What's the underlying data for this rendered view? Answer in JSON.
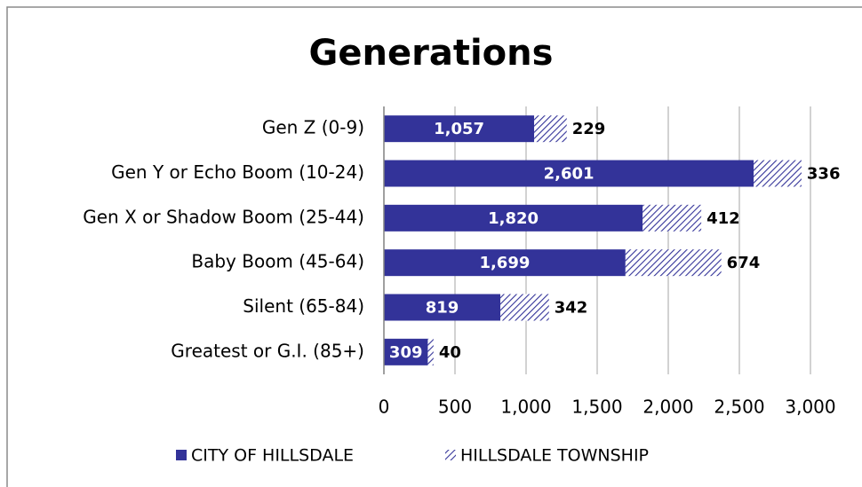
{
  "chart_data": {
    "type": "stacked_barh",
    "title": "Generations",
    "categories": [
      "Gen Z (0-9)",
      "Gen Y or Echo Boom (10-24)",
      "Gen X or Shadow Boom (25-44)",
      "Baby Boom (45-64)",
      "Silent (65-84)",
      "Greatest or G.I. (85+)"
    ],
    "series": [
      {
        "name": "CITY OF HILLSDALE",
        "color": "#333399",
        "fill": "solid",
        "values": [
          1057,
          2601,
          1820,
          1699,
          819,
          309
        ],
        "value_labels": [
          "1,057",
          "2,601",
          "1,820",
          "1,699",
          "819",
          "309"
        ]
      },
      {
        "name": "HILLSDALE TOWNSHIP",
        "color": "#333399",
        "fill": "hatch",
        "values": [
          229,
          336,
          412,
          674,
          342,
          40
        ]
      }
    ],
    "xlim": [
      0,
      3000
    ],
    "xticks": [
      0,
      500,
      {
        "value": 1000,
        "label": "1,000"
      },
      {
        "value": 1500,
        "label": "1,500"
      },
      {
        "value": 2000,
        "label": "2,000"
      },
      {
        "value": 2500,
        "label": "2,500"
      },
      {
        "value": 3000,
        "label": "3,000"
      }
    ],
    "grid": true,
    "legend": "bottom"
  }
}
